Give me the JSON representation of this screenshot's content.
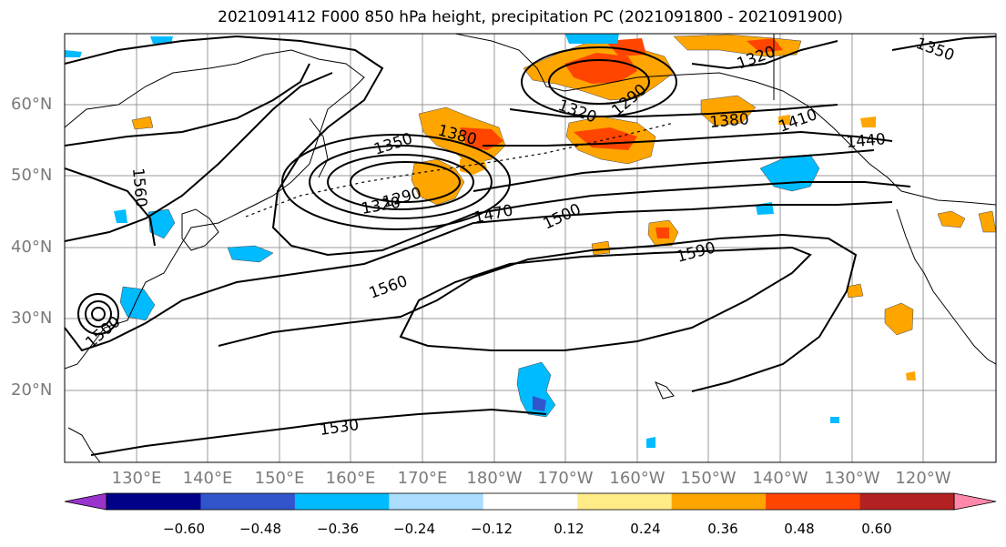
{
  "title": "2021091412 F000 850 hPa height, precipitation PC (2021091800 - 2021091900)",
  "map": {
    "lat_labels": [
      "60°N",
      "50°N",
      "40°N",
      "30°N",
      "20°N"
    ],
    "lon_labels": [
      "130°E",
      "140°E",
      "150°E",
      "160°E",
      "170°E",
      "180°W",
      "170°W",
      "160°W",
      "150°W",
      "140°W",
      "130°W",
      "120°W"
    ],
    "contour_labels": [
      "1350",
      "1380",
      "1320",
      "1290",
      "1470",
      "1500",
      "1560",
      "1590",
      "1530",
      "1500",
      "1560",
      "1320",
      "1290",
      "1380",
      "1320",
      "1350",
      "1440",
      "1410"
    ]
  },
  "colorbar": {
    "ticks": [
      "−0.60",
      "−0.48",
      "−0.36",
      "−0.24",
      "−0.12",
      "0.12",
      "0.24",
      "0.36",
      "0.48",
      "0.60"
    ],
    "colors": [
      "#9933cc",
      "#000088",
      "#3355cc",
      "#00bbff",
      "#aaddff",
      "#ffffff",
      "#ffeb88",
      "#ffa500",
      "#ff4500",
      "#b22222",
      "#ff88aa"
    ]
  }
}
